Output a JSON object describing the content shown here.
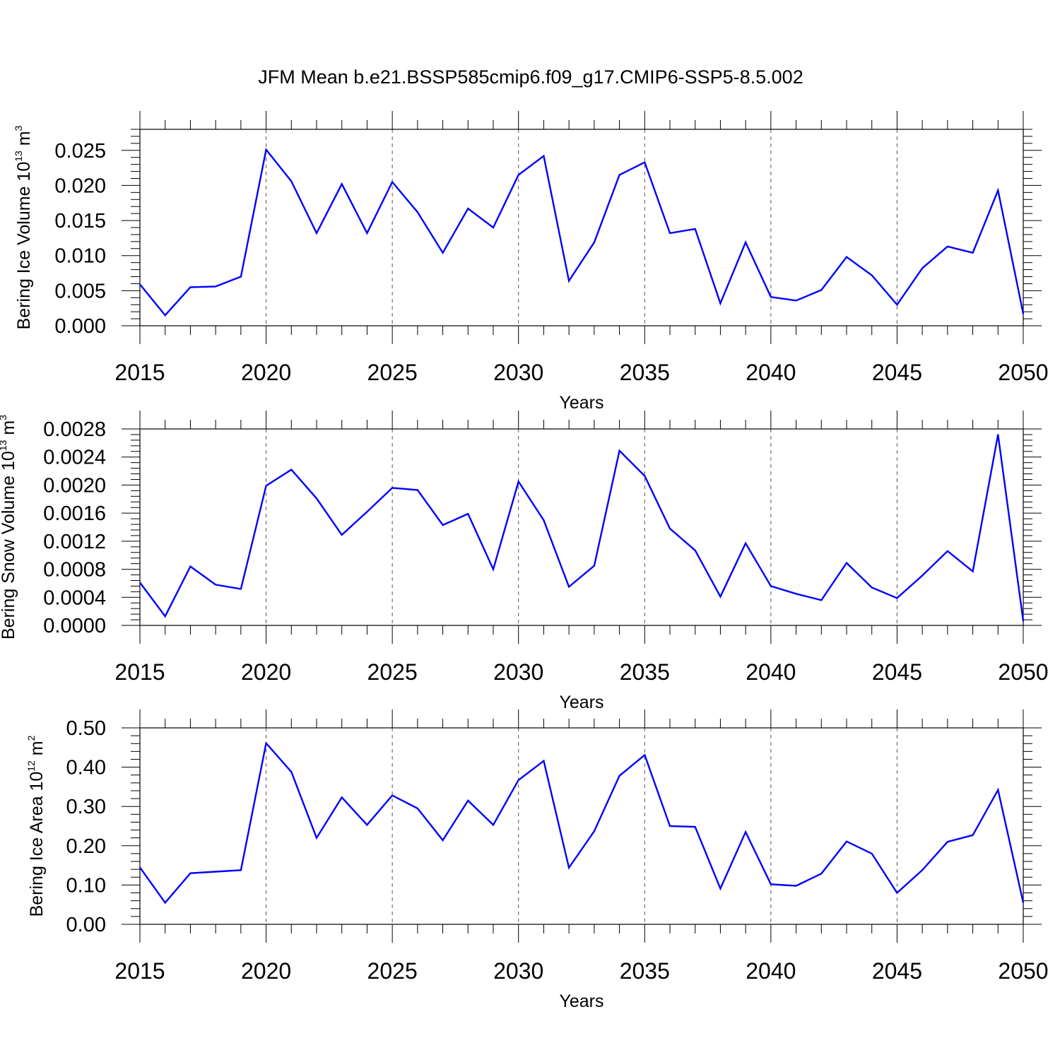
{
  "figure": {
    "title": "JFM Mean b.e21.BSSP585cmip6.f09_g17.CMIP6-SSP5-8.5.002",
    "line_color": "#0000ff"
  },
  "chart_data": [
    {
      "type": "line",
      "title": "JFM Mean b.e21.BSSP585cmip6.f09_g17.CMIP6-SSP5-8.5.002",
      "xlabel": "Years",
      "ylabel_text": "Bering Ice Volume 10",
      "ylabel_exp": "13",
      "ylabel_unit": "m",
      "ylabel_unit_exp": "3",
      "xlim": [
        2015,
        2050
      ],
      "ylim": [
        0,
        0.028
      ],
      "xticks": [
        2015,
        2020,
        2025,
        2030,
        2035,
        2040,
        2045,
        2050
      ],
      "xtick_labels": [
        "2015",
        "2020",
        "2025",
        "2030",
        "2035",
        "2040",
        "2045",
        "2050"
      ],
      "yticks": [
        0,
        0.005,
        0.01,
        0.015,
        0.02,
        0.025
      ],
      "ytick_labels": [
        "0.000",
        "0.005",
        "0.010",
        "0.015",
        "0.020",
        "0.025"
      ],
      "grid": "vertical dashed at major x ticks",
      "series": [
        {
          "name": "Bering Ice Volume",
          "x": [
            2015,
            2016,
            2017,
            2018,
            2019,
            2020,
            2021,
            2022,
            2023,
            2024,
            2025,
            2026,
            2027,
            2028,
            2029,
            2030,
            2031,
            2032,
            2033,
            2034,
            2035,
            2036,
            2037,
            2038,
            2039,
            2040,
            2041,
            2042,
            2043,
            2044,
            2045,
            2046,
            2047,
            2048,
            2049,
            2050
          ],
          "values": [
            0.0059,
            0.0015,
            0.0055,
            0.0056,
            0.007,
            0.0251,
            0.0206,
            0.0132,
            0.0202,
            0.0132,
            0.0205,
            0.0162,
            0.0104,
            0.0167,
            0.014,
            0.0215,
            0.0242,
            0.0064,
            0.0119,
            0.0215,
            0.0233,
            0.0132,
            0.0138,
            0.0032,
            0.0119,
            0.0041,
            0.0036,
            0.0051,
            0.0098,
            0.0072,
            0.003,
            0.0082,
            0.0113,
            0.0104,
            0.0193,
            0.0017
          ]
        }
      ]
    },
    {
      "type": "line",
      "xlabel": "Years",
      "ylabel_text": "Bering Snow Volume 10",
      "ylabel_exp": "13",
      "ylabel_unit": "m",
      "ylabel_unit_exp": "3",
      "xlim": [
        2015,
        2050
      ],
      "ylim": [
        0,
        0.0028
      ],
      "xticks": [
        2015,
        2020,
        2025,
        2030,
        2035,
        2040,
        2045,
        2050
      ],
      "xtick_labels": [
        "2015",
        "2020",
        "2025",
        "2030",
        "2035",
        "2040",
        "2045",
        "2050"
      ],
      "yticks": [
        0,
        0.0004,
        0.0008,
        0.0012,
        0.0016,
        0.002,
        0.0024,
        0.0028
      ],
      "ytick_labels": [
        "0.0000",
        "0.0004",
        "0.0008",
        "0.0012",
        "0.0016",
        "0.0020",
        "0.0024",
        "0.0028"
      ],
      "grid": "vertical dashed at major x ticks",
      "series": [
        {
          "name": "Bering Snow Volume",
          "x": [
            2015,
            2016,
            2017,
            2018,
            2019,
            2020,
            2021,
            2022,
            2023,
            2024,
            2025,
            2026,
            2027,
            2028,
            2029,
            2030,
            2031,
            2032,
            2033,
            2034,
            2035,
            2036,
            2037,
            2038,
            2039,
            2040,
            2041,
            2042,
            2043,
            2044,
            2045,
            2046,
            2047,
            2048,
            2049,
            2050
          ],
          "values": [
            0.00061,
            0.00013,
            0.00084,
            0.00058,
            0.00052,
            0.00199,
            0.00222,
            0.00181,
            0.00129,
            0.00162,
            0.00196,
            0.00193,
            0.00143,
            0.00159,
            0.0008,
            0.00205,
            0.0015,
            0.00055,
            0.00085,
            0.00249,
            0.00213,
            0.00138,
            0.00107,
            0.00041,
            0.00117,
            0.00056,
            0.00045,
            0.00036,
            0.00089,
            0.00054,
            0.00039,
            0.00071,
            0.00106,
            0.00077,
            0.00272,
            6e-05
          ]
        }
      ]
    },
    {
      "type": "line",
      "xlabel": "Years",
      "ylabel_text": "Bering Ice Area 10",
      "ylabel_exp": "12",
      "ylabel_unit": "m",
      "ylabel_unit_exp": "2",
      "xlim": [
        2015,
        2050
      ],
      "ylim": [
        0,
        0.5
      ],
      "xticks": [
        2015,
        2020,
        2025,
        2030,
        2035,
        2040,
        2045,
        2050
      ],
      "xtick_labels": [
        "2015",
        "2020",
        "2025",
        "2030",
        "2035",
        "2040",
        "2045",
        "2050"
      ],
      "yticks": [
        0,
        0.1,
        0.2,
        0.3,
        0.4,
        0.5
      ],
      "ytick_labels": [
        "0.00",
        "0.10",
        "0.20",
        "0.30",
        "0.40",
        "0.50"
      ],
      "grid": "vertical dashed at major x ticks",
      "series": [
        {
          "name": "Bering Ice Area",
          "x": [
            2015,
            2016,
            2017,
            2018,
            2019,
            2020,
            2021,
            2022,
            2023,
            2024,
            2025,
            2026,
            2027,
            2028,
            2029,
            2030,
            2031,
            2032,
            2033,
            2034,
            2035,
            2036,
            2037,
            2038,
            2039,
            2040,
            2041,
            2042,
            2043,
            2044,
            2045,
            2046,
            2047,
            2048,
            2049,
            2050
          ],
          "values": [
            0.145,
            0.055,
            0.13,
            0.134,
            0.138,
            0.461,
            0.388,
            0.22,
            0.323,
            0.253,
            0.328,
            0.295,
            0.214,
            0.315,
            0.253,
            0.367,
            0.416,
            0.144,
            0.237,
            0.378,
            0.431,
            0.25,
            0.248,
            0.091,
            0.235,
            0.102,
            0.098,
            0.129,
            0.211,
            0.18,
            0.08,
            0.138,
            0.21,
            0.227,
            0.342,
            0.055
          ]
        }
      ]
    }
  ]
}
